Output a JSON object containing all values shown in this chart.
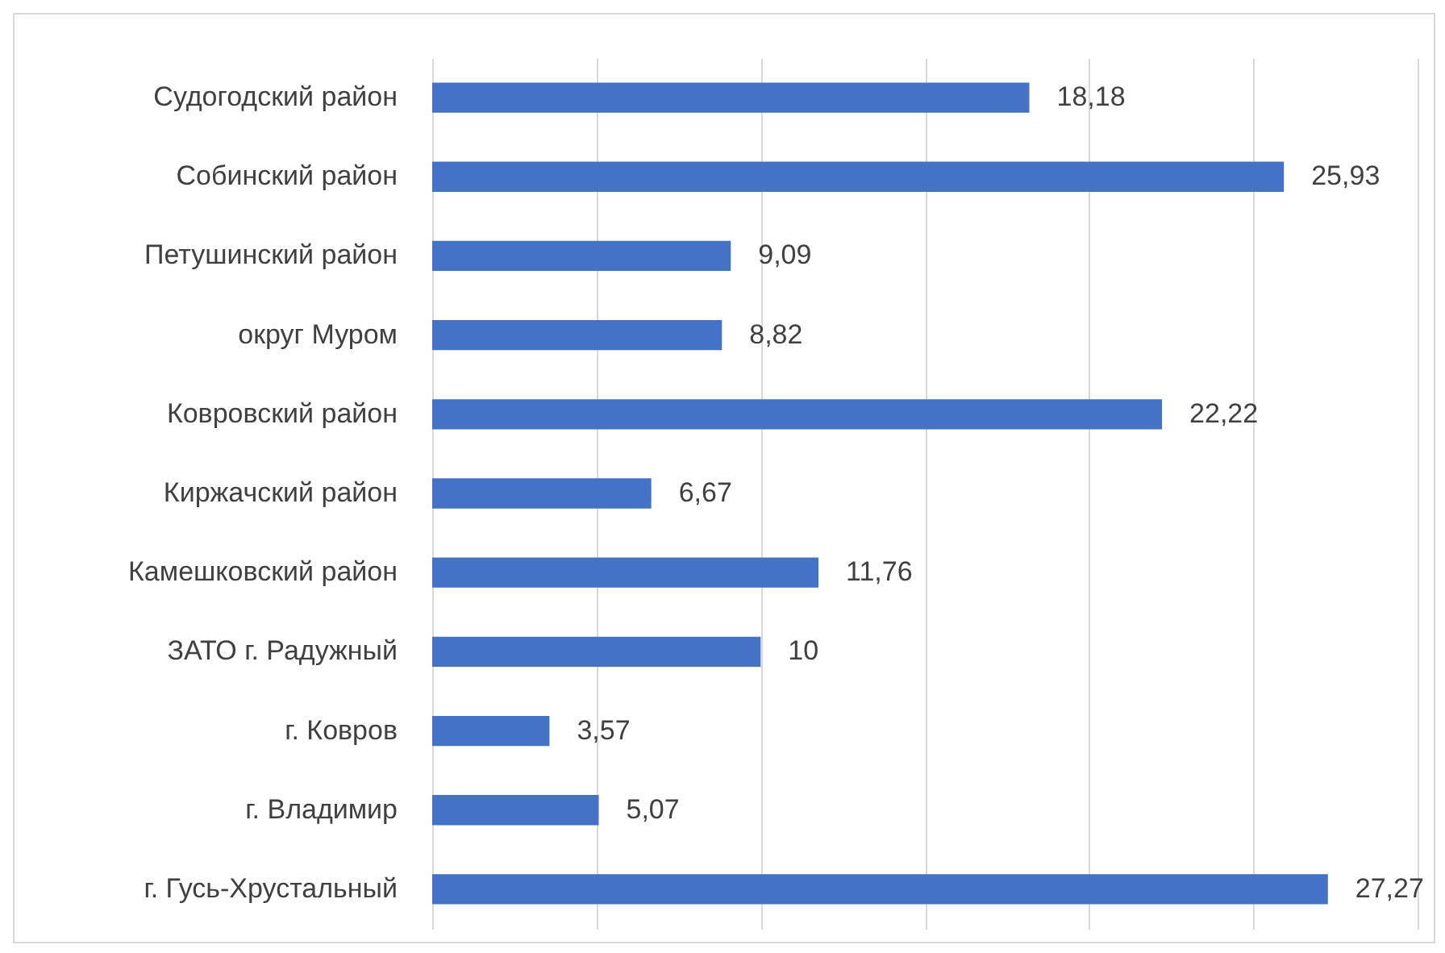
{
  "chart_data": {
    "type": "bar",
    "orientation": "horizontal",
    "categories": [
      "Судогодский район",
      "Собинский район",
      "Петушинский район",
      "округ Муром",
      "Ковровский район",
      "Киржачский район",
      "Камешковский район",
      "ЗАТО г. Радужный",
      "г. Ковров",
      "г. Владимир",
      "г. Гусь-Хрустальный"
    ],
    "values": [
      18.18,
      25.93,
      9.09,
      8.82,
      22.22,
      6.67,
      11.76,
      10,
      3.57,
      5.07,
      27.27
    ],
    "value_labels": [
      "18,18",
      "25,93",
      "9,09",
      "8,82",
      "22,22",
      "6,67",
      "11,76",
      "10",
      "3,57",
      "5,07",
      "27,27"
    ],
    "color": "#4472c4",
    "xlim": [
      0,
      30
    ],
    "xticks": [
      {
        "value": 0,
        "label": null
      },
      {
        "value": 5,
        "label": null
      },
      {
        "value": 10,
        "label": null
      },
      {
        "value": 15,
        "label": null
      },
      {
        "value": 20,
        "label": null
      },
      {
        "value": 25,
        "label": null
      },
      {
        "value": 30,
        "label": null
      }
    ],
    "grid": "x",
    "tick_labels": "y"
  }
}
